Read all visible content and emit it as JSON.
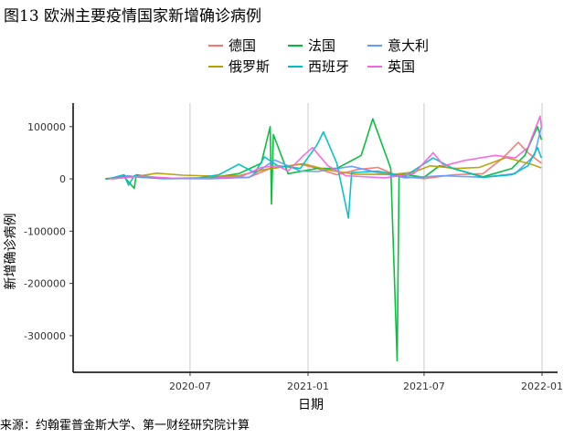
{
  "title": "图13 欧洲主要疫情国家新增确诊病例",
  "source": "来源：约翰霍普金斯大学、第一财经研究院计算",
  "chart_data": {
    "type": "line",
    "xlabel": "日期",
    "ylabel": "新增确诊病例",
    "x_range": [
      "2020-01-22",
      "2022-01-01"
    ],
    "ylim": [
      -370000,
      145000
    ],
    "x_ticks": [
      {
        "date": "2020-07-01",
        "label": "2020-07"
      },
      {
        "date": "2021-01-01",
        "label": "2021-01"
      },
      {
        "date": "2021-07-01",
        "label": "2021-07"
      },
      {
        "date": "2022-01-01",
        "label": "2022-01"
      }
    ],
    "y_ticks": [
      {
        "value": 100000,
        "label": "100000"
      },
      {
        "value": 0,
        "label": "0"
      },
      {
        "value": -100000,
        "label": "-100000"
      },
      {
        "value": -200000,
        "label": "-200000"
      },
      {
        "value": -300000,
        "label": "-300000"
      }
    ],
    "grid": "vertical-major",
    "legend_position": "top",
    "series": [
      {
        "name": "德国",
        "color": "#F8766D",
        "points": [
          [
            "2020-02-20",
            0
          ],
          [
            "2020-03-25",
            6000
          ],
          [
            "2020-04-15",
            3000
          ],
          [
            "2020-06-01",
            500
          ],
          [
            "2020-08-15",
            1500
          ],
          [
            "2020-10-01",
            3000
          ],
          [
            "2020-11-01",
            19000
          ],
          [
            "2020-12-20",
            28000
          ],
          [
            "2021-01-10",
            22000
          ],
          [
            "2021-02-15",
            8000
          ],
          [
            "2021-03-20",
            18000
          ],
          [
            "2021-04-20",
            22000
          ],
          [
            "2021-05-20",
            6000
          ],
          [
            "2021-07-01",
            500
          ],
          [
            "2021-08-15",
            8000
          ],
          [
            "2021-10-01",
            10000
          ],
          [
            "2021-11-01",
            40000
          ],
          [
            "2021-11-25",
            70000
          ],
          [
            "2021-12-10",
            50000
          ],
          [
            "2021-12-31",
            30000
          ]
        ]
      },
      {
        "name": "法国",
        "color": "#00BA38",
        "points": [
          [
            "2020-02-20",
            0
          ],
          [
            "2020-03-20",
            4000
          ],
          [
            "2020-04-05",
            -18000
          ],
          [
            "2020-04-08",
            8000
          ],
          [
            "2020-05-20",
            500
          ],
          [
            "2020-08-01",
            2000
          ],
          [
            "2020-09-15",
            10000
          ],
          [
            "2020-10-20",
            30000
          ],
          [
            "2020-11-03",
            100000
          ],
          [
            "2020-11-05",
            -48000
          ],
          [
            "2020-11-08",
            85000
          ],
          [
            "2020-12-01",
            10000
          ],
          [
            "2021-01-15",
            20000
          ],
          [
            "2021-02-15",
            20000
          ],
          [
            "2021-03-25",
            45000
          ],
          [
            "2021-04-12",
            115000
          ],
          [
            "2021-05-10",
            20000
          ],
          [
            "2021-05-20",
            -348000
          ],
          [
            "2021-05-23",
            10000
          ],
          [
            "2021-07-01",
            3000
          ],
          [
            "2021-07-25",
            25000
          ],
          [
            "2021-08-15",
            20000
          ],
          [
            "2021-10-01",
            4000
          ],
          [
            "2021-11-15",
            20000
          ],
          [
            "2021-12-05",
            45000
          ],
          [
            "2021-12-25",
            100000
          ],
          [
            "2021-12-31",
            75000
          ]
        ]
      },
      {
        "name": "意大利",
        "color": "#619CFF",
        "points": [
          [
            "2020-02-25",
            0
          ],
          [
            "2020-03-20",
            6000
          ],
          [
            "2020-04-15",
            3000
          ],
          [
            "2020-05-15",
            800
          ],
          [
            "2020-08-01",
            300
          ],
          [
            "2020-10-01",
            3000
          ],
          [
            "2020-11-10",
            36000
          ],
          [
            "2020-12-20",
            15000
          ],
          [
            "2021-01-15",
            14000
          ],
          [
            "2021-03-10",
            24000
          ],
          [
            "2021-04-20",
            12000
          ],
          [
            "2021-06-01",
            2000
          ],
          [
            "2021-08-01",
            6000
          ],
          [
            "2021-10-01",
            3000
          ],
          [
            "2021-11-20",
            10000
          ],
          [
            "2021-12-20",
            45000
          ],
          [
            "2021-12-31",
            100000
          ]
        ]
      },
      {
        "name": "俄罗斯",
        "color": "#B79F00",
        "points": [
          [
            "2020-03-01",
            0
          ],
          [
            "2020-04-10",
            5000
          ],
          [
            "2020-05-10",
            11000
          ],
          [
            "2020-06-20",
            7000
          ],
          [
            "2020-08-15",
            5000
          ],
          [
            "2020-09-15",
            6000
          ],
          [
            "2020-10-25",
            18000
          ],
          [
            "2020-12-24",
            29000
          ],
          [
            "2021-02-01",
            17000
          ],
          [
            "2021-03-15",
            9000
          ],
          [
            "2021-05-15",
            8500
          ],
          [
            "2021-06-15",
            13000
          ],
          [
            "2021-07-10",
            25000
          ],
          [
            "2021-08-20",
            20000
          ],
          [
            "2021-09-25",
            22000
          ],
          [
            "2021-11-06",
            41000
          ],
          [
            "2021-12-15",
            28000
          ],
          [
            "2021-12-31",
            21000
          ]
        ]
      },
      {
        "name": "西班牙",
        "color": "#00BFC4",
        "points": [
          [
            "2020-02-25",
            0
          ],
          [
            "2020-03-20",
            8000
          ],
          [
            "2020-03-27",
            -12000
          ],
          [
            "2020-04-05",
            6000
          ],
          [
            "2020-05-15",
            1000
          ],
          [
            "2020-07-15",
            2000
          ],
          [
            "2020-08-15",
            8000
          ],
          [
            "2020-09-15",
            28000
          ],
          [
            "2020-10-10",
            12000
          ],
          [
            "2020-10-25",
            42000
          ],
          [
            "2020-11-15",
            25000
          ],
          [
            "2020-12-20",
            20000
          ],
          [
            "2021-01-15",
            65000
          ],
          [
            "2021-01-25",
            90000
          ],
          [
            "2021-02-15",
            30000
          ],
          [
            "2021-03-05",
            -75000
          ],
          [
            "2021-03-10",
            12000
          ],
          [
            "2021-04-20",
            15000
          ],
          [
            "2021-06-01",
            5000
          ],
          [
            "2021-07-15",
            40000
          ],
          [
            "2021-08-15",
            20000
          ],
          [
            "2021-10-01",
            3000
          ],
          [
            "2021-11-15",
            8000
          ],
          [
            "2021-12-10",
            25000
          ],
          [
            "2021-12-25",
            60000
          ],
          [
            "2021-12-31",
            40000
          ]
        ]
      },
      {
        "name": "英国",
        "color": "#F564E3",
        "points": [
          [
            "2020-02-25",
            0
          ],
          [
            "2020-04-15",
            5000
          ],
          [
            "2020-06-01",
            1500
          ],
          [
            "2020-08-01",
            1000
          ],
          [
            "2020-09-20",
            5000
          ],
          [
            "2020-10-20",
            22000
          ],
          [
            "2020-11-15",
            25000
          ],
          [
            "2020-12-01",
            15000
          ],
          [
            "2020-12-25",
            45000
          ],
          [
            "2021-01-08",
            60000
          ],
          [
            "2021-02-01",
            25000
          ],
          [
            "2021-03-01",
            6000
          ],
          [
            "2021-05-01",
            2000
          ],
          [
            "2021-06-15",
            10000
          ],
          [
            "2021-07-15",
            50000
          ],
          [
            "2021-08-01",
            25000
          ],
          [
            "2021-09-01",
            35000
          ],
          [
            "2021-10-20",
            45000
          ],
          [
            "2021-11-20",
            40000
          ],
          [
            "2021-12-10",
            60000
          ],
          [
            "2021-12-29",
            120000
          ],
          [
            "2021-12-31",
            100000
          ]
        ]
      }
    ]
  }
}
